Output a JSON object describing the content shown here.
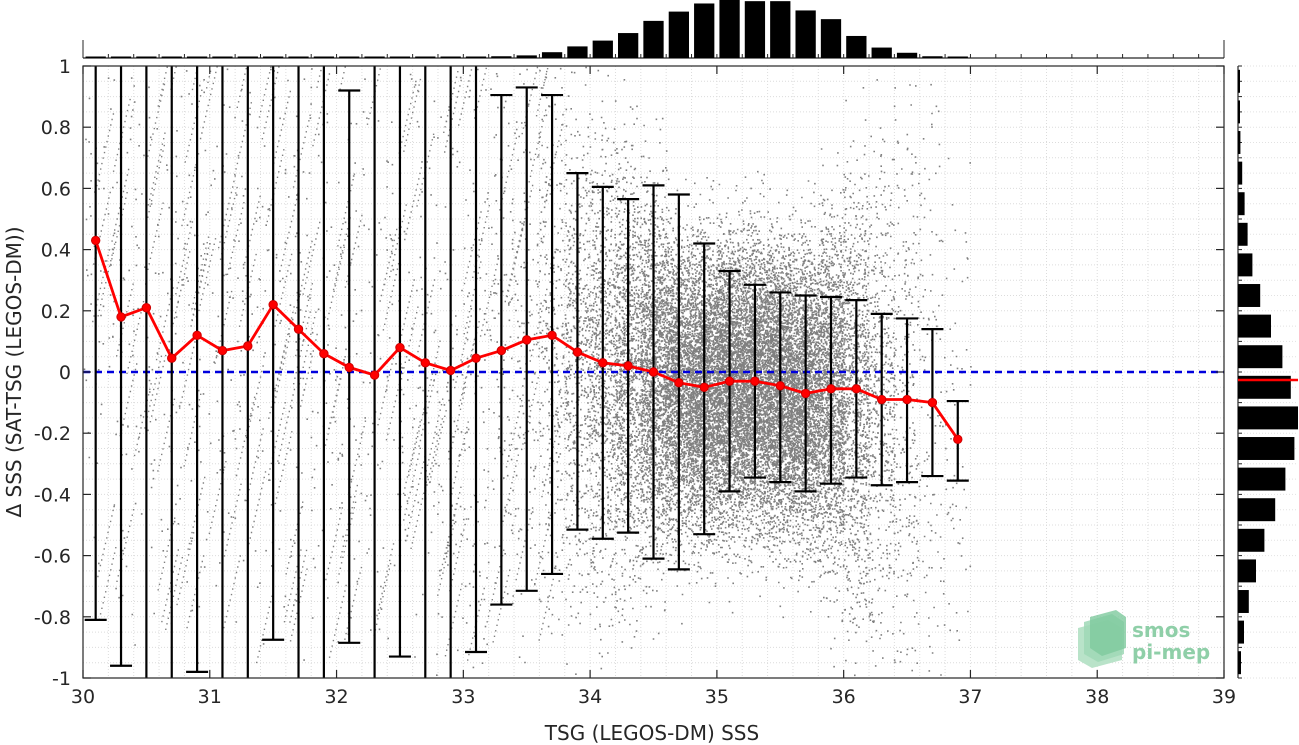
{
  "chart_data": {
    "type": "scatter",
    "xlabel": "TSG (LEGOS-DM) SSS",
    "ylabel": "Δ SSS (SAT-TSG (LEGOS-DM))",
    "xlim": [
      30,
      39
    ],
    "ylim": [
      -1,
      1
    ],
    "xticks": [
      "30",
      "31",
      "32",
      "33",
      "34",
      "35",
      "36",
      "37",
      "38",
      "39"
    ],
    "yticks": [
      "-1",
      "-0.8",
      "-0.6",
      "-0.4",
      "-0.2",
      "0",
      "0.2",
      "0.4",
      "0.6",
      "0.8",
      "1"
    ],
    "grid": true,
    "zero_line": {
      "y": 0,
      "color": "#0000dd",
      "style": "dashed"
    },
    "scatter_color": "#808080",
    "binned_mean": {
      "color": "#ff0000",
      "x": [
        30.1,
        30.3,
        30.5,
        30.7,
        30.9,
        31.1,
        31.3,
        31.5,
        31.7,
        31.9,
        32.1,
        32.3,
        32.5,
        32.7,
        32.9,
        33.1,
        33.3,
        33.5,
        33.7,
        33.9,
        34.1,
        34.3,
        34.5,
        34.7,
        34.9,
        35.1,
        35.3,
        35.5,
        35.7,
        35.9,
        36.1,
        36.3,
        36.5,
        36.7,
        36.9
      ],
      "mean": [
        0.43,
        0.18,
        0.21,
        0.045,
        0.12,
        0.07,
        0.085,
        0.22,
        0.14,
        0.06,
        0.015,
        -0.01,
        0.08,
        0.03,
        0.005,
        0.045,
        0.07,
        0.105,
        0.12,
        0.065,
        0.03,
        0.02,
        0.0,
        -0.035,
        -0.05,
        -0.03,
        -0.03,
        -0.045,
        -0.07,
        -0.055,
        -0.055,
        -0.09,
        -0.09,
        -0.1,
        -0.22
      ],
      "upper": [
        1.0,
        1.0,
        1.0,
        1.0,
        1.0,
        1.0,
        1.0,
        1.0,
        1.0,
        1.0,
        0.92,
        1.0,
        1.0,
        1.0,
        1.0,
        1.0,
        0.905,
        0.93,
        0.905,
        0.65,
        0.605,
        0.565,
        0.61,
        0.58,
        0.42,
        0.33,
        0.285,
        0.26,
        0.25,
        0.245,
        0.235,
        0.19,
        0.175,
        0.14,
        -0.095
      ],
      "lower": [
        -0.81,
        -0.96,
        -1.0,
        -1.0,
        -0.98,
        -1.0,
        -1.0,
        -0.875,
        -1.0,
        -1.0,
        -0.885,
        -1.0,
        -0.93,
        -1.0,
        -1.0,
        -0.915,
        -0.76,
        -0.715,
        -0.66,
        -0.515,
        -0.545,
        -0.525,
        -0.61,
        -0.645,
        -0.53,
        -0.39,
        -0.345,
        -0.36,
        -0.39,
        -0.365,
        -0.345,
        -0.37,
        -0.36,
        -0.34,
        -0.355
      ]
    },
    "top_histogram": {
      "type": "bar",
      "bin_centers": [
        30.1,
        30.3,
        30.5,
        30.7,
        30.9,
        31.1,
        31.3,
        31.5,
        31.7,
        31.9,
        32.1,
        32.3,
        32.5,
        32.7,
        32.9,
        33.1,
        33.3,
        33.5,
        33.7,
        33.9,
        34.1,
        34.3,
        34.5,
        34.7,
        34.9,
        35.1,
        35.3,
        35.5,
        35.7,
        35.9,
        36.1,
        36.3,
        36.5,
        36.7,
        36.9
      ],
      "relative_counts": [
        0.005,
        0.005,
        0.005,
        0.005,
        0.005,
        0.005,
        0.005,
        0.005,
        0.005,
        0.005,
        0.005,
        0.005,
        0.005,
        0.008,
        0.012,
        0.02,
        0.03,
        0.045,
        0.1,
        0.2,
        0.3,
        0.43,
        0.64,
        0.8,
        0.94,
        1.0,
        0.98,
        0.98,
        0.82,
        0.67,
        0.38,
        0.18,
        0.09,
        0.03,
        0.01
      ]
    },
    "right_histogram": {
      "type": "bar",
      "orientation": "horizontal",
      "bin_centers": [
        0.95,
        0.85,
        0.75,
        0.65,
        0.55,
        0.45,
        0.35,
        0.25,
        0.15,
        0.05,
        -0.05,
        -0.15,
        -0.25,
        -0.35,
        -0.45,
        -0.55,
        -0.65,
        -0.75,
        -0.85,
        -0.95
      ],
      "relative_counts": [
        0.01,
        0.02,
        0.04,
        0.07,
        0.11,
        0.16,
        0.24,
        0.37,
        0.55,
        0.74,
        0.88,
        1.0,
        0.94,
        0.79,
        0.62,
        0.44,
        0.3,
        0.18,
        0.1,
        0.05
      ],
      "mean_line": {
        "y": 0,
        "color": "#ff0000"
      }
    }
  },
  "logo": {
    "line1": "smos",
    "line2": "pi-mep"
  }
}
